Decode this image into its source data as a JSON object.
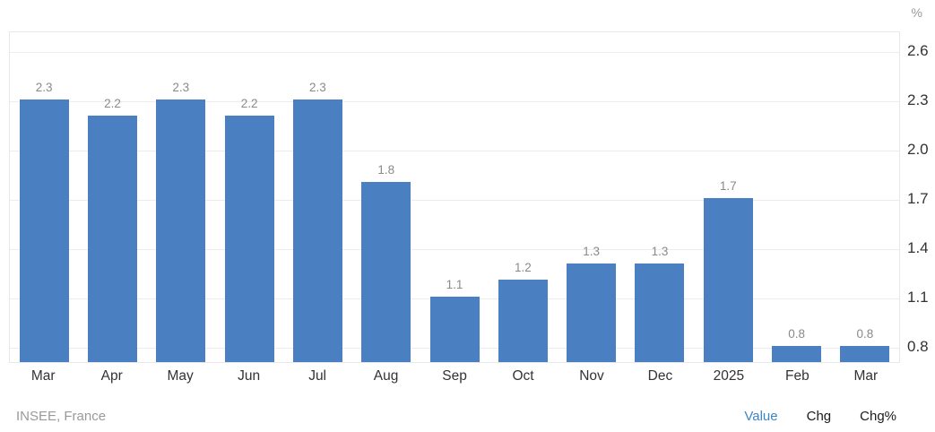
{
  "chart_data": {
    "type": "bar",
    "title": "",
    "categories": [
      "Mar",
      "Apr",
      "May",
      "Jun",
      "Jul",
      "Aug",
      "Sep",
      "Oct",
      "Nov",
      "Dec",
      "2025",
      "Feb",
      "Mar"
    ],
    "values": [
      2.3,
      2.2,
      2.3,
      2.2,
      2.3,
      1.8,
      1.1,
      1.2,
      1.3,
      1.3,
      1.7,
      0.8,
      0.8
    ],
    "unit": "%",
    "y_tick_labels": [
      "2.6",
      "2.3",
      "2.0",
      "1.7",
      "1.4",
      "1.1",
      "0.8"
    ],
    "y_tick_values": [
      2.6,
      2.3,
      2.0,
      1.7,
      1.4,
      1.1,
      0.8
    ],
    "ylim": [
      0.7,
      2.72
    ],
    "bar_color": "#4a7fc1",
    "grid": true,
    "legend_position": "none"
  },
  "footer": {
    "source": "INSEE, France",
    "links": [
      {
        "label": "Value",
        "active": true
      },
      {
        "label": "Chg",
        "active": false
      },
      {
        "label": "Chg%",
        "active": false
      }
    ]
  }
}
